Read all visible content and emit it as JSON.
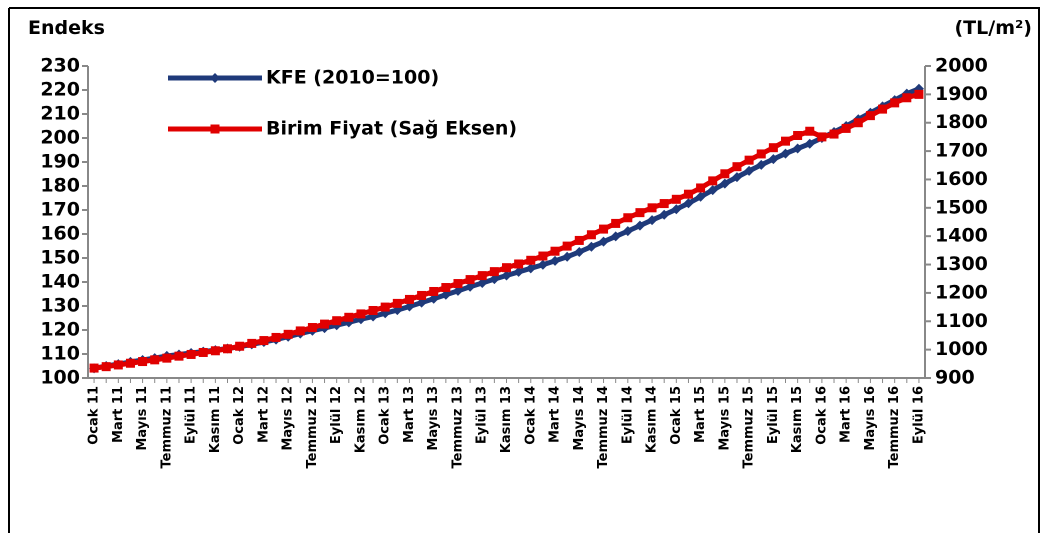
{
  "chart_data": {
    "type": "line",
    "y_label": "Endeks",
    "y2_label": "(TL/m²)",
    "categories": [
      "Ocak 11",
      null,
      "Mart 11",
      null,
      "Mayıs 11",
      null,
      "Temmuz 11",
      null,
      "Eylül 11",
      null,
      "Kasım 11",
      null,
      "Ocak 12",
      null,
      "Mart 12",
      null,
      "Mayıs 12",
      null,
      "Temmuz 12",
      null,
      "Eylül 12",
      null,
      "Kasım 12",
      null,
      "Ocak 13",
      null,
      "Mart 13",
      null,
      "Mayıs 13",
      null,
      "Temmuz 13",
      null,
      "Eylül 13",
      null,
      "Kasım 13",
      null,
      "Ocak 14",
      null,
      "Mart 14",
      null,
      "Mayıs 14",
      null,
      "Temmuz 14",
      null,
      "Eylül 14",
      null,
      "Kasım 14",
      null,
      "Ocak 15",
      null,
      "Mart 15",
      null,
      "Mayıs 15",
      null,
      "Temmuz 15",
      null,
      "Eylül 15",
      null,
      "Kasım 15",
      null,
      "Ocak 16",
      null,
      "Mart 16",
      null,
      "Mayıs 16",
      null,
      "Temmuz 16",
      null,
      "Eylül 16"
    ],
    "series": [
      {
        "name": "KFE (2010=100)",
        "color": "#1f3a7a",
        "marker": "diamond",
        "values": [
          104,
          105,
          105.8,
          106.7,
          107.5,
          108.3,
          109.2,
          109.8,
          110.4,
          111,
          111.6,
          112.3,
          113,
          114,
          115,
          116,
          117.2,
          118.5,
          119.7,
          120.8,
          122,
          123.2,
          124.5,
          125.6,
          127,
          128.3,
          129.8,
          131.4,
          133,
          134.7,
          136.3,
          138,
          139.6,
          141.2,
          142.7,
          144.2,
          145.7,
          147.2,
          148.8,
          150.5,
          152.5,
          154.7,
          156.8,
          159,
          161.2,
          163.5,
          165.8,
          168,
          170.3,
          172.8,
          175.5,
          178.3,
          181,
          183.7,
          186.3,
          188.8,
          191.2,
          193.5,
          195.6,
          197.6,
          200,
          202.5,
          205,
          207.8,
          210.5,
          213.2,
          215.8,
          218.5,
          220.5
        ]
      },
      {
        "name": "Birim Fiyat (Sağ Eksen)",
        "color": "#e00000",
        "marker": "square",
        "axis": "y2",
        "values": [
          935,
          940,
          946,
          952,
          958,
          964,
          970,
          977,
          983,
          990,
          996,
          1003,
          1012,
          1022,
          1032,
          1043,
          1054,
          1066,
          1078,
          1090,
          1102,
          1114,
          1126,
          1138,
          1150,
          1163,
          1177,
          1191,
          1205,
          1219,
          1233,
          1247,
          1261,
          1275,
          1289,
          1302,
          1315,
          1330,
          1347,
          1365,
          1385,
          1405,
          1425,
          1445,
          1465,
          1483,
          1500,
          1515,
          1530,
          1548,
          1570,
          1595,
          1620,
          1645,
          1668,
          1690,
          1712,
          1735,
          1755,
          1770,
          1750,
          1760,
          1780,
          1800,
          1825,
          1848,
          1870,
          1888,
          1900
        ]
      }
    ],
    "ylim": [
      100,
      230
    ],
    "yticks": [
      100,
      110,
      120,
      130,
      140,
      150,
      160,
      170,
      180,
      190,
      200,
      210,
      220,
      230
    ],
    "y2lim": [
      900,
      2000
    ],
    "y2ticks": [
      900,
      1000,
      1100,
      1200,
      1300,
      1400,
      1500,
      1600,
      1700,
      1800,
      1900,
      2000
    ],
    "legend": "top-left"
  }
}
